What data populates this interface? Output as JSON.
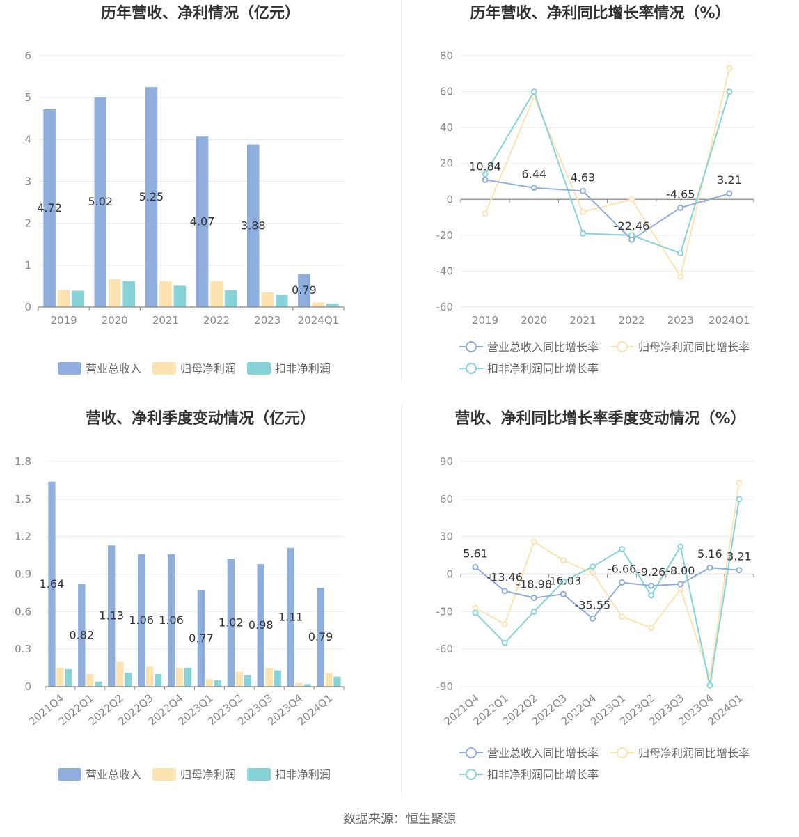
{
  "colors": {
    "revenue": "#8eaedd",
    "parent": "#fde3b0",
    "deducted": "#86d4d8",
    "axis": "#888888",
    "grid": "#e8ebf2",
    "tick": "#888888",
    "title": "#333333",
    "label": "#333333",
    "legend_text": "#666666"
  },
  "source": "数据来源：恒生聚源",
  "chart_data": [
    {
      "type": "bar",
      "title": "历年营收、净利情况（亿元）",
      "categories": [
        "2019",
        "2020",
        "2021",
        "2022",
        "2023",
        "2024Q1"
      ],
      "ylim": [
        0,
        6
      ],
      "yticks": [
        0,
        1,
        2,
        3,
        4,
        5,
        6
      ],
      "series": [
        {
          "name": "营业总收入",
          "values": [
            4.72,
            5.02,
            5.25,
            4.07,
            3.88,
            0.79
          ],
          "labels": [
            "4.72",
            "5.02",
            "5.25",
            "4.07",
            "3.88",
            "0.79"
          ]
        },
        {
          "name": "归母净利润",
          "values": [
            0.42,
            0.67,
            0.62,
            0.62,
            0.35,
            0.11
          ]
        },
        {
          "name": "扣非净利润",
          "values": [
            0.39,
            0.62,
            0.51,
            0.41,
            0.29,
            0.08
          ]
        }
      ],
      "legend": [
        "营业总收入",
        "归母净利润",
        "扣非净利润"
      ]
    },
    {
      "type": "line",
      "title": "历年营收、净利同比增长率情况（%）",
      "categories": [
        "2019",
        "2020",
        "2021",
        "2022",
        "2023",
        "2024Q1"
      ],
      "ylim": [
        -60,
        80
      ],
      "yticks": [
        -60,
        -40,
        -20,
        0,
        20,
        40,
        60,
        80
      ],
      "series": [
        {
          "name": "营业总收入同比增长率",
          "values": [
            10.84,
            6.44,
            4.63,
            -22.46,
            -4.65,
            3.21
          ],
          "labels": [
            "10.84",
            "6.44",
            "4.63",
            "-22.46",
            "-4.65",
            "3.21"
          ]
        },
        {
          "name": "归母净利润同比增长率",
          "values": [
            -8,
            57,
            -7,
            0,
            -43,
            73
          ]
        },
        {
          "name": "扣非净利润同比增长率",
          "values": [
            14,
            60,
            -19,
            -20,
            -30,
            60
          ]
        }
      ],
      "legend": [
        "营业总收入同比增长率",
        "归母净利润同比增长率",
        "扣非净利润同比增长率"
      ]
    },
    {
      "type": "bar",
      "title": "营收、净利季度变动情况（亿元）",
      "categories": [
        "2021Q4",
        "2022Q1",
        "2022Q2",
        "2022Q3",
        "2022Q4",
        "2023Q1",
        "2023Q2",
        "2023Q3",
        "2023Q4",
        "2024Q1"
      ],
      "ylim": [
        0,
        1.8
      ],
      "yticks": [
        "0",
        "0.3",
        "0.6",
        "0.9",
        "1.2",
        "1.5",
        "1.8"
      ],
      "series": [
        {
          "name": "营业总收入",
          "values": [
            1.64,
            0.82,
            1.13,
            1.06,
            1.06,
            0.77,
            1.02,
            0.98,
            1.11,
            0.79
          ],
          "labels": [
            "1.64",
            "0.82",
            "1.13",
            "1.06",
            "1.06",
            "0.77",
            "1.02",
            "0.98",
            "1.11",
            "0.79"
          ]
        },
        {
          "name": "归母净利润",
          "values": [
            0.15,
            0.1,
            0.2,
            0.16,
            0.15,
            0.06,
            0.12,
            0.15,
            0.03,
            0.11
          ]
        },
        {
          "name": "扣非净利润",
          "values": [
            0.14,
            0.04,
            0.11,
            0.1,
            0.15,
            0.05,
            0.09,
            0.13,
            0.02,
            0.08
          ]
        }
      ],
      "legend": [
        "营业总收入",
        "归母净利润",
        "扣非净利润"
      ]
    },
    {
      "type": "line",
      "title": "营收、净利同比增长率季度变动情况（%）",
      "categories": [
        "2021Q4",
        "2022Q1",
        "2022Q2",
        "2022Q3",
        "2022Q4",
        "2023Q1",
        "2023Q2",
        "2023Q3",
        "2023Q4",
        "2024Q1"
      ],
      "ylim": [
        -90,
        90
      ],
      "yticks": [
        -90,
        -60,
        -30,
        0,
        30,
        60,
        90
      ],
      "series": [
        {
          "name": "营业总收入同比增长率",
          "values": [
            5.61,
            -13.46,
            -18.98,
            -16.03,
            -35.55,
            -6.66,
            -9.26,
            -8.0,
            5.16,
            3.21
          ],
          "labels": [
            "5.61",
            "-13.46",
            "-18.98",
            "-16.03",
            "-35.55",
            "-6.66",
            "-9.26",
            "-8.00",
            "5.16",
            "3.21"
          ]
        },
        {
          "name": "归母净利润同比增长率",
          "values": [
            -27,
            -40,
            26,
            11,
            1,
            -34,
            -43,
            -12,
            -83,
            73
          ]
        },
        {
          "name": "扣非净利润同比增长率",
          "values": [
            -31,
            -55,
            -30,
            -6,
            6,
            20,
            -17,
            22,
            -89,
            60
          ]
        }
      ],
      "legend": [
        "营业总收入同比增长率",
        "归母净利润同比增长率",
        "扣非净利润同比增长率"
      ]
    }
  ]
}
